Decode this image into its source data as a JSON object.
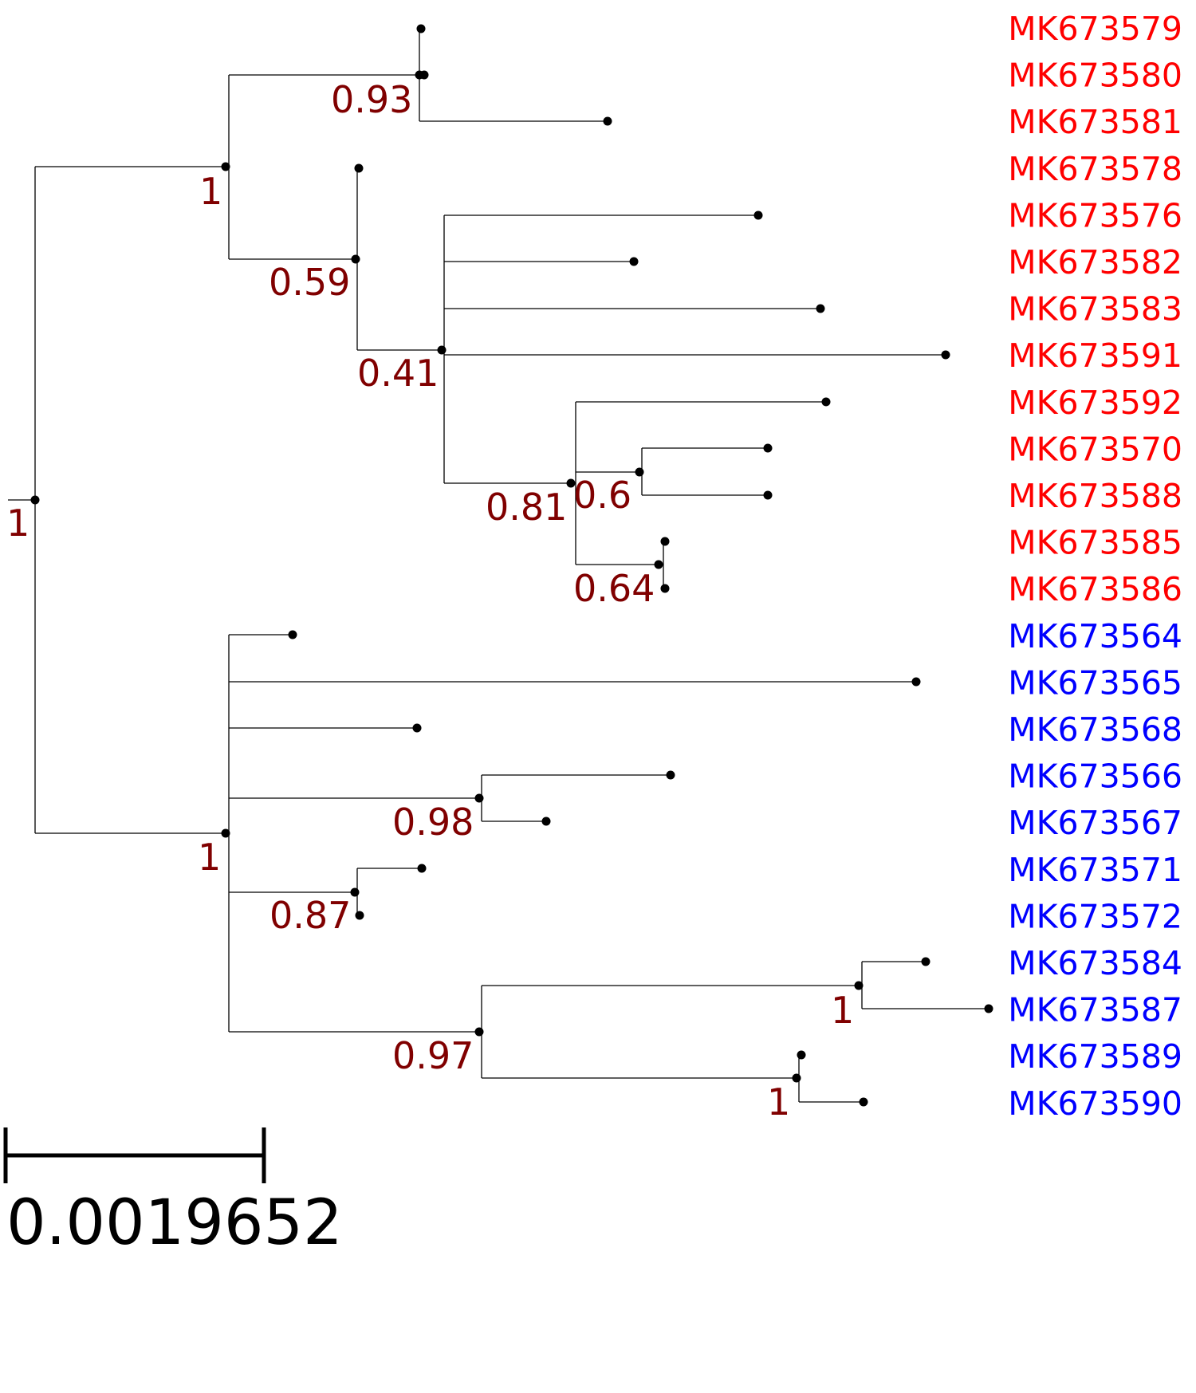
{
  "tree": {
    "colors": {
      "group_a": "#ff0000",
      "group_b": "#0000ff",
      "support": "#800000",
      "branch": "#000000"
    },
    "leaves": [
      {
        "id": "MK673579",
        "label": "MK673579",
        "group": "group_a"
      },
      {
        "id": "MK673580",
        "label": "MK673580",
        "group": "group_a"
      },
      {
        "id": "MK673581",
        "label": "MK673581",
        "group": "group_a"
      },
      {
        "id": "MK673578",
        "label": "MK673578",
        "group": "group_a"
      },
      {
        "id": "MK673576",
        "label": "MK673576",
        "group": "group_a"
      },
      {
        "id": "MK673582",
        "label": "MK673582",
        "group": "group_a"
      },
      {
        "id": "MK673583",
        "label": "MK673583",
        "group": "group_a"
      },
      {
        "id": "MK673591",
        "label": "MK673591",
        "group": "group_a"
      },
      {
        "id": "MK673592",
        "label": "MK673592",
        "group": "group_a"
      },
      {
        "id": "MK673570",
        "label": "MK673570",
        "group": "group_a"
      },
      {
        "id": "MK673588",
        "label": "MK673588",
        "group": "group_a"
      },
      {
        "id": "MK673585",
        "label": "MK673585",
        "group": "group_a"
      },
      {
        "id": "MK673586",
        "label": "MK673586",
        "group": "group_a"
      },
      {
        "id": "MK673564",
        "label": "MK673564",
        "group": "group_b"
      },
      {
        "id": "MK673565",
        "label": "MK673565",
        "group": "group_b"
      },
      {
        "id": "MK673568",
        "label": "MK673568",
        "group": "group_b"
      },
      {
        "id": "MK673566",
        "label": "MK673566",
        "group": "group_b"
      },
      {
        "id": "MK673567",
        "label": "MK673567",
        "group": "group_b"
      },
      {
        "id": "MK673571",
        "label": "MK673571",
        "group": "group_b"
      },
      {
        "id": "MK673572",
        "label": "MK673572",
        "group": "group_b"
      },
      {
        "id": "MK673584",
        "label": "MK673584",
        "group": "group_b"
      },
      {
        "id": "MK673587",
        "label": "MK673587",
        "group": "group_b"
      },
      {
        "id": "MK673589",
        "label": "MK673589",
        "group": "group_b"
      },
      {
        "id": "MK673590",
        "label": "MK673590",
        "group": "group_b"
      }
    ],
    "support_values": [
      "1",
      "1",
      "0.93",
      "0.59",
      "0.41",
      "0.81",
      "0.6",
      "0.64",
      "1",
      "0.98",
      "0.87",
      "0.97",
      "1",
      "1"
    ],
    "scale_bar": {
      "label": "0.0019652"
    }
  }
}
